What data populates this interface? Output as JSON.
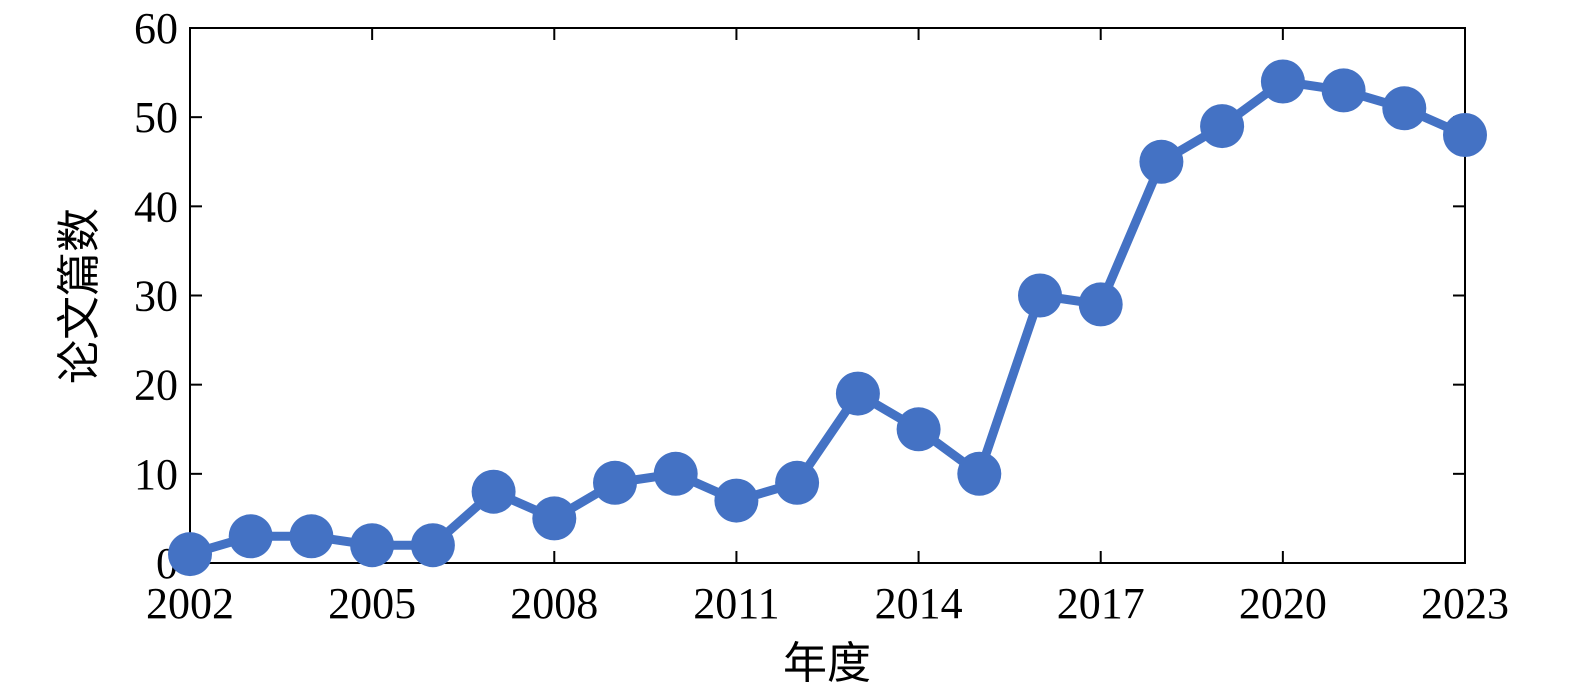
{
  "chart_data": {
    "type": "line",
    "title": "",
    "xlabel": "年度",
    "ylabel": "论文篇数",
    "x": [
      2002,
      2003,
      2004,
      2005,
      2006,
      2007,
      2008,
      2009,
      2010,
      2011,
      2012,
      2013,
      2014,
      2015,
      2016,
      2017,
      2018,
      2019,
      2020,
      2021,
      2022,
      2023
    ],
    "series": [
      {
        "name": "",
        "values": [
          1,
          3,
          3,
          2,
          2,
          8,
          5,
          9,
          10,
          7,
          9,
          19,
          15,
          10,
          30,
          29,
          45,
          49,
          54,
          53,
          51,
          48
        ],
        "color": "#4472C4"
      }
    ],
    "xlim": [
      2002,
      2023
    ],
    "ylim": [
      0,
      60
    ],
    "xticks": [
      2002,
      2005,
      2008,
      2011,
      2014,
      2017,
      2020,
      2023
    ],
    "yticks": [
      0,
      10,
      20,
      30,
      40,
      50,
      60
    ],
    "grid": false,
    "legend": "none"
  }
}
